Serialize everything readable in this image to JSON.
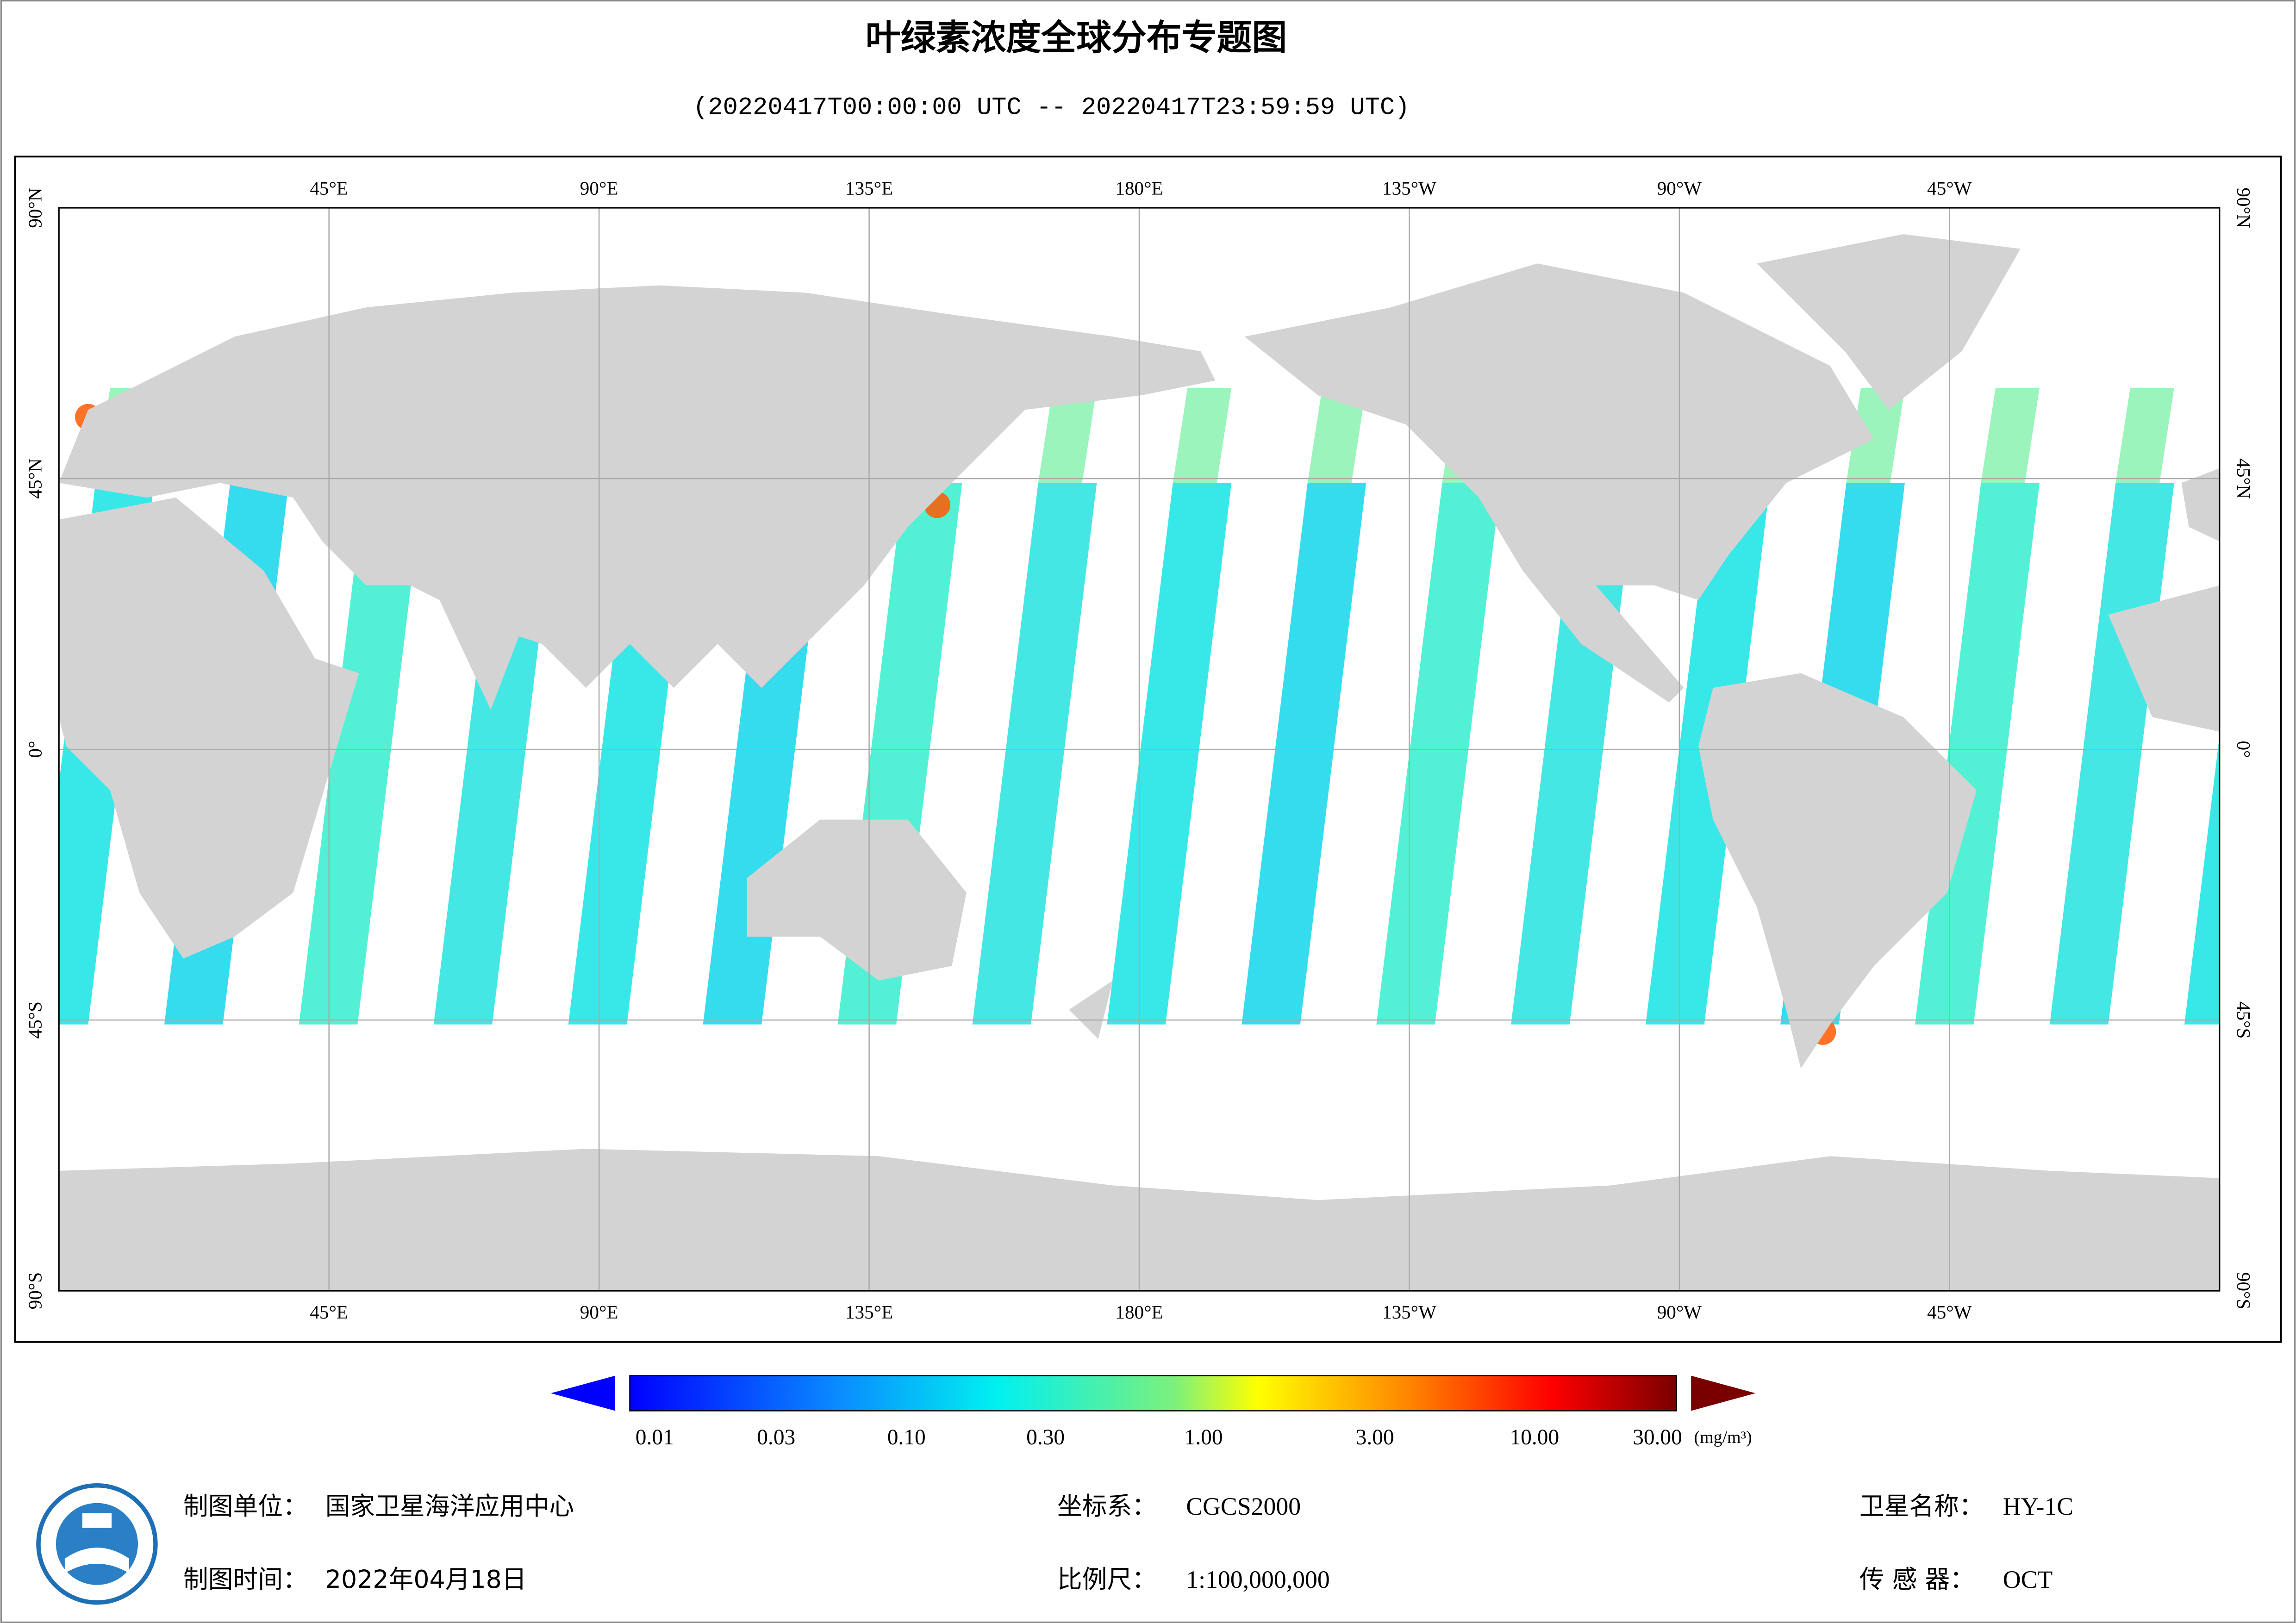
{
  "header": {
    "title": "叶绿素浓度全球分布专题图",
    "subtitle": "(20220417T00:00:00 UTC -- 20220417T23:59:59 UTC)"
  },
  "map": {
    "lon_labels": [
      "45°E",
      "90°E",
      "135°E",
      "180°E",
      "135°W",
      "90°W",
      "45°W"
    ],
    "lat_labels": [
      "90°N",
      "45°N",
      "0°",
      "45°S",
      "90°S"
    ]
  },
  "colorbar": {
    "labels": [
      "0.01",
      "0.03",
      "0.10",
      "0.30",
      "1.00",
      "3.00",
      "10.00",
      "30.00"
    ],
    "unit": "(mg/m³)"
  },
  "footer": {
    "unit_label": "制图单位：",
    "unit": "国家卫星海洋应用中心",
    "crs_label": "坐标系：",
    "crs": "CGCS2000",
    "satellite_label": "卫星名称：",
    "satellite": "HY-1C",
    "date_label": "制图时间：",
    "date": "2022年04月18日",
    "scale_label": "比例尺：",
    "scale": "1:100,000,000",
    "sensor_label": "传 感 器：",
    "sensor": "OCT"
  }
}
